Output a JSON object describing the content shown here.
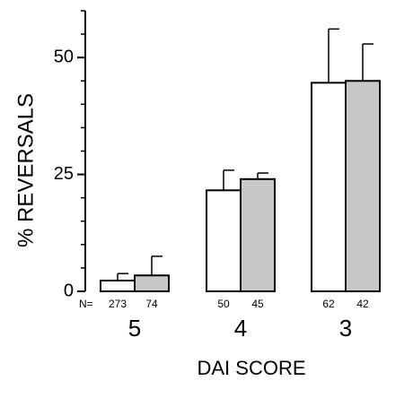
{
  "chart_data": {
    "type": "bar",
    "x_label": "DAI SCORE",
    "y_label": "% REVERSALS",
    "categories": [
      "5",
      "4",
      "3"
    ],
    "n_label": "N=",
    "series": [
      {
        "color": "#ffffff",
        "values": [
          2.3,
          21.6,
          44.6
        ],
        "errors": [
          1.5,
          4.3,
          11.5
        ],
        "n": [
          273,
          50,
          62
        ]
      },
      {
        "color": "#c8c8c8",
        "values": [
          3.4,
          24.0,
          45.0
        ],
        "errors": [
          4.1,
          1.3,
          7.9
        ],
        "n": [
          74,
          45,
          42
        ]
      }
    ],
    "ylim": [
      0,
      60
    ],
    "yticks": [
      0,
      25,
      50
    ],
    "minor_yticks": [
      5,
      10,
      15,
      20,
      30,
      35,
      40,
      45,
      55,
      60
    ],
    "grid": false
  }
}
